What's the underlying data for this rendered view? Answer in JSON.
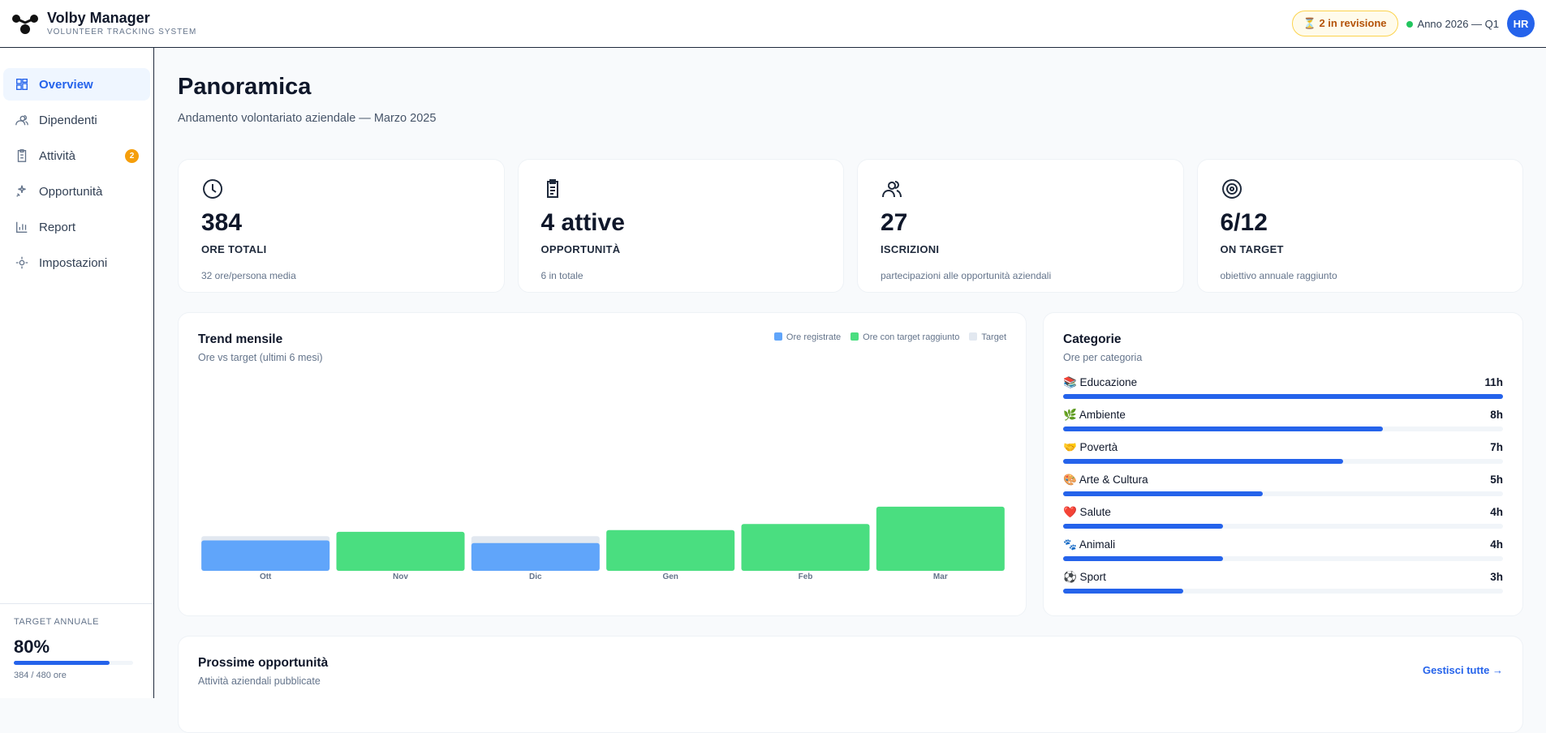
{
  "header": {
    "brand": "Volby Manager",
    "tagline": "VOLUNTEER TRACKING SYSTEM",
    "review_badge": "⏳ 2 in revisione",
    "period": "Anno 2026 — Q1",
    "avatar": "HR"
  },
  "sidebar": {
    "nav": [
      {
        "label": "Overview"
      },
      {
        "label": "Dipendenti"
      },
      {
        "label": "Attività",
        "badge": 2
      },
      {
        "label": "Opportunità"
      },
      {
        "label": "Report"
      },
      {
        "label": "Impostazioni"
      }
    ],
    "target": {
      "title": "TARGET ANNUALE",
      "value": 80,
      "value_label": "80%",
      "detail": "384 / 480 ore"
    }
  },
  "page": {
    "title": "Panoramica",
    "subtitle": "Andamento volontariato aziendale — Marzo 2025"
  },
  "stats": [
    {
      "value": "384",
      "label": "ORE TOTALI",
      "note": "32 ore/persona media"
    },
    {
      "value": "4 attive",
      "label": "OPPORTUNITÀ",
      "note": "6 in totale"
    },
    {
      "value": "27",
      "label": "ISCRIZIONI",
      "note": "partecipazioni alle opportunità aziendali"
    },
    {
      "value": "6/12",
      "label": "ON TARGET",
      "note": "obiettivo annuale raggiunto"
    }
  ],
  "chart_data": [
    {
      "type": "bar",
      "title": "Trend mensile",
      "subtitle": "Ore vs target (ultimi 6 mesi)",
      "categories": [
        "Ott",
        "Nov",
        "Dic",
        "Gen",
        "Feb",
        "Mar"
      ],
      "series": [
        {
          "name": "Ore registrate",
          "color": "#60a5fa",
          "values": [
            35,
            null,
            32,
            null,
            null,
            null
          ]
        },
        {
          "name": "Ore con target raggiunto",
          "color": "#4ade80",
          "values": [
            null,
            45,
            null,
            47,
            54,
            74
          ]
        },
        {
          "name": "Target",
          "color": "#e2e8f0",
          "values": [
            40,
            40,
            40,
            40,
            40,
            40
          ]
        }
      ]
    },
    {
      "type": "hbar",
      "title": "Categorie",
      "subtitle": "Ore per categoria",
      "color": "#2563eb",
      "categories": [
        "📚 Educazione",
        "🌿 Ambiente",
        "🤝 Povertà",
        "🎨 Arte & Cultura",
        "❤️ Salute",
        "🐾 Animali",
        "⚽ Sport"
      ],
      "values": [
        11,
        8,
        7,
        5,
        4,
        4,
        3
      ],
      "value_labels": [
        "11h",
        "8h",
        "7h",
        "5h",
        "4h",
        "4h",
        "3h"
      ]
    }
  ],
  "upcoming": {
    "title": "Prossime opportunità",
    "subtitle": "Attività aziendali pubblicate",
    "link": "Gestisci tutte →"
  }
}
